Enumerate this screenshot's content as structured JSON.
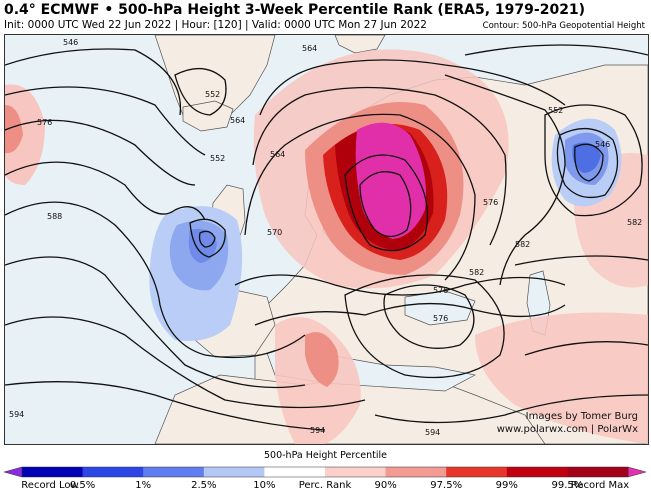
{
  "header": {
    "title": "0.4° ECMWF • 500-hPa Height 3-Week Percentile Rank (ERA5, 1979-2021)",
    "subtitle": "Init: 0000 UTC Wed 22 Jun 2022 | Hour: [120] | Valid: 0000 UTC Mon 27 Jun 2022",
    "contour_note": "Contour: 500-hPa Geopotential Height"
  },
  "map": {
    "contour_labels": [
      "546",
      "552",
      "564",
      "564",
      "552",
      "564",
      "570",
      "576",
      "582",
      "588",
      "546",
      "552",
      "576",
      "582",
      "576",
      "594",
      "594",
      "594",
      "576",
      "582"
    ],
    "credit": [
      "Images by Tomer Burg",
      "www.polarwx.com | PolarWx"
    ]
  },
  "legend": {
    "title": "500-hPa Height Percentile",
    "labels": [
      "Record Low",
      "0.5%",
      "1%",
      "2.5%",
      "10%",
      "Perc. Rank",
      "90%",
      "97.5%",
      "99%",
      "99.5%",
      "Record Max"
    ],
    "colors": [
      "#8a2be2",
      "#0000b4",
      "#2c46e6",
      "#5f7cf0",
      "#b4c8f8",
      "#ffffff",
      "#fbd0cb",
      "#f39a92",
      "#e8352b",
      "#c00010",
      "#a4001a",
      "#e62fae"
    ]
  }
}
